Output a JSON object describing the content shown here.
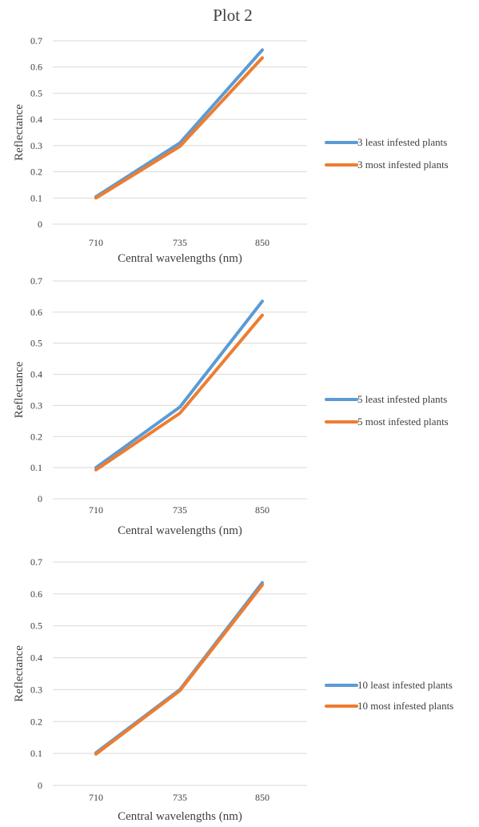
{
  "figure_title": "Plot 2",
  "colors": {
    "least": "#5B9BD5",
    "most": "#ED7D31",
    "grid": "#D9D9D9",
    "text": "#404040"
  },
  "chart_data": [
    {
      "type": "line",
      "categories": [
        "710",
        "735",
        "850"
      ],
      "xlabel": "Central wavelengths (nm)",
      "ylabel": "Reflectance",
      "ylim": [
        0,
        0.7
      ],
      "yticks": [
        "0",
        "0.1",
        "0.2",
        "0.3",
        "0.4",
        "0.5",
        "0.6",
        "0.7"
      ],
      "grid": true,
      "legend_position": "right",
      "series": [
        {
          "name": "3 least infested plants",
          "values": [
            0.105,
            0.31,
            0.665
          ],
          "color": "#5B9BD5"
        },
        {
          "name": "3 most infested plants",
          "values": [
            0.1,
            0.297,
            0.635
          ],
          "color": "#ED7D31"
        }
      ]
    },
    {
      "type": "line",
      "categories": [
        "710",
        "735",
        "850"
      ],
      "xlabel": "Central wavelengths (nm)",
      "ylabel": "Reflectance",
      "ylim": [
        0,
        0.7
      ],
      "yticks": [
        "0",
        "0.1",
        "0.2",
        "0.3",
        "0.4",
        "0.5",
        "0.6",
        "0.7"
      ],
      "grid": true,
      "legend_position": "right",
      "series": [
        {
          "name": "5 least infested plants",
          "values": [
            0.1,
            0.295,
            0.635
          ],
          "color": "#5B9BD5"
        },
        {
          "name": "5 most infested plants",
          "values": [
            0.093,
            0.275,
            0.59
          ],
          "color": "#ED7D31"
        }
      ]
    },
    {
      "type": "line",
      "categories": [
        "710",
        "735",
        "850"
      ],
      "xlabel": "Central wavelengths (nm)",
      "ylabel": "Reflectance",
      "ylim": [
        0,
        0.7
      ],
      "yticks": [
        "0",
        "0.1",
        "0.2",
        "0.3",
        "0.4",
        "0.5",
        "0.6",
        "0.7"
      ],
      "grid": true,
      "legend_position": "right",
      "series": [
        {
          "name": "10 least infested plants",
          "values": [
            0.102,
            0.3,
            0.635
          ],
          "color": "#5B9BD5"
        },
        {
          "name": "10 most infested plants",
          "values": [
            0.098,
            0.297,
            0.628
          ],
          "color": "#ED7D31"
        }
      ]
    }
  ]
}
